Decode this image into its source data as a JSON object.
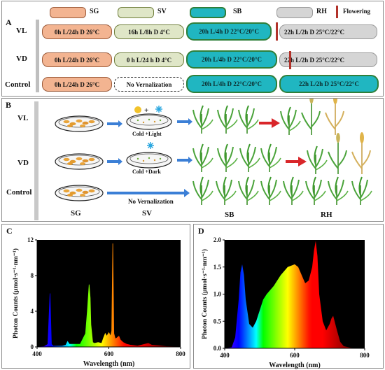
{
  "panel_a": {
    "label": "A",
    "legend": {
      "sg": "SG",
      "sv": "SV",
      "sb": "SB",
      "rh": "RH",
      "flowering": "Flowering"
    },
    "rows": [
      {
        "name": "VL",
        "sg": "0h L/24h D   26°C",
        "sv": "16h L/8h D   4°C",
        "sb": "20h L/4h D   22°C/20°C",
        "rh": "22h L/2h D   25°C/22°C"
      },
      {
        "name": "VD",
        "sg": "0h L/24h D   26°C",
        "sv": "0 h L/24 h D   4°C",
        "sb": "20h L/4b D   22°C/20°C",
        "rh": "22h L/2h D   25°C/22°C"
      },
      {
        "name": "Control",
        "sg": "0h L/24h D   26°C",
        "sv": "No Vernalization",
        "sb": "20h L/4h D   22°C/20°C",
        "rh": "22h L/2h D   25°C/22°C"
      }
    ],
    "colors": {
      "sg": "#f3b491",
      "sv": "#dfe6c7",
      "sb": "#20b6c1",
      "rh": "#d5d5d5",
      "flowering": "#b2322a"
    }
  },
  "panel_b": {
    "label": "B",
    "rows": [
      "VL",
      "VD",
      "Control"
    ],
    "treatments": [
      "Cold +Light",
      "Cold +Dark",
      "No Vernalization"
    ],
    "stages": [
      "SG",
      "SV",
      "SB",
      "RH"
    ],
    "icons": [
      "petri-dish",
      "sun-icon",
      "snowflake-icon",
      "seedling",
      "flowering-plant",
      "arrow"
    ]
  },
  "panel_c": {
    "label": "C",
    "xlabel": "Wavelength (nm)",
    "ylabel": "Photon Counts (µmol·s⁻¹·nm⁻¹)",
    "xticks": [
      "400",
      "600",
      "800"
    ],
    "yticks": [
      "0",
      "4",
      "8",
      "12"
    ]
  },
  "panel_d": {
    "label": "D",
    "xlabel": "Wavelength (nm)",
    "ylabel": "Photon Counts (µmol·s⁻¹·nm⁻¹)",
    "xticks": [
      "400",
      "600",
      "800"
    ],
    "yticks": [
      "0.0",
      "0.5",
      "1.0",
      "1.5",
      "2.0"
    ]
  },
  "chart_data": [
    {
      "type": "line",
      "panel": "C",
      "xlabel": "Wavelength (nm)",
      "ylabel": "Photon Counts (µmol·s⁻¹·nm⁻¹)",
      "xlim": [
        400,
        800
      ],
      "ylim": [
        0,
        12
      ],
      "x": [
        400,
        420,
        430,
        436,
        440,
        445,
        450,
        470,
        480,
        485,
        490,
        500,
        520,
        535,
        540,
        545,
        548,
        550,
        555,
        560,
        570,
        580,
        585,
        590,
        594,
        600,
        605,
        608,
        611,
        614,
        618,
        622,
        628,
        632,
        640,
        650,
        660,
        680,
        700,
        710,
        720,
        740,
        760,
        780,
        800
      ],
      "y": [
        0,
        0.05,
        0.3,
        6.0,
        0.3,
        0.1,
        0.1,
        0.1,
        0.2,
        0.6,
        0.3,
        0.3,
        0.3,
        1.5,
        4.0,
        7.0,
        5.5,
        2.5,
        0.5,
        0.4,
        0.5,
        0.4,
        1.0,
        1.5,
        1.2,
        1.6,
        1.2,
        1.8,
        11.6,
        1.5,
        0.9,
        1.0,
        1.2,
        0.8,
        0.5,
        0.3,
        0.2,
        0.1,
        0.3,
        0.4,
        0.2,
        0.15,
        0.05,
        0.02,
        0
      ]
    },
    {
      "type": "area",
      "panel": "D",
      "xlabel": "Wavelength (nm)",
      "ylabel": "Photon Counts (µmol·s⁻¹·nm⁻¹)",
      "xlim": [
        400,
        800
      ],
      "ylim": [
        0,
        2.0
      ],
      "x": [
        400,
        420,
        430,
        440,
        445,
        450,
        455,
        460,
        470,
        480,
        490,
        500,
        510,
        520,
        540,
        560,
        580,
        600,
        610,
        620,
        630,
        640,
        650,
        655,
        660,
        665,
        670,
        680,
        690,
        700,
        705,
        710,
        720,
        730,
        740,
        760,
        780,
        800
      ],
      "y": [
        0,
        0.02,
        0.2,
        0.9,
        1.4,
        1.55,
        1.35,
        0.9,
        0.45,
        0.38,
        0.5,
        0.7,
        0.9,
        1.0,
        1.15,
        1.35,
        1.5,
        1.55,
        1.5,
        1.35,
        1.2,
        1.25,
        1.5,
        1.8,
        1.98,
        1.7,
        1.0,
        0.5,
        0.33,
        0.45,
        0.55,
        0.6,
        0.35,
        0.12,
        0.04,
        0.01,
        0,
        0
      ]
    }
  ]
}
